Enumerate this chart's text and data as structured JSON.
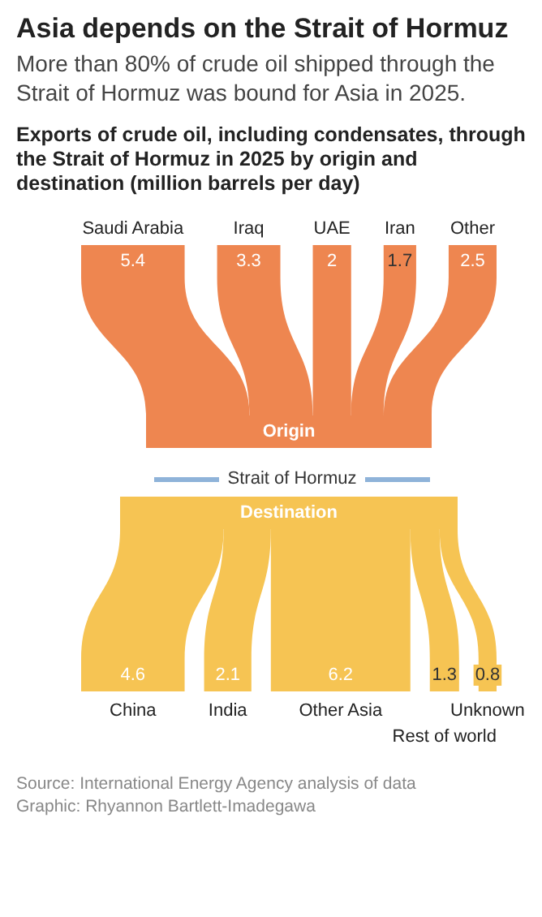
{
  "chart_data": {
    "type": "other",
    "title": "Asia depends on the Strait of Hormuz",
    "subtitle": "More than 80% of crude oil shipped through the Strait of Hormuz was bound for Asia in 2025.",
    "annotations": [
      "Exports of crude oil, including condensates, through the Strait of Hormuz in 2025 by origin and destination (million barrels per day)",
      "Origin",
      "Strait of Hormuz",
      "Destination",
      "Source: International Energy Agency analysis of data",
      "Graphic: Rhyannon Bartlett-Imadegawa"
    ],
    "data_labels": true,
    "categories": [
      "Saudi Arabia",
      "Iraq",
      "UAE",
      "Iran",
      "Other",
      "China",
      "India",
      "Other Asia",
      "Rest of world",
      "Unknown"
    ],
    "values": [
      5.4,
      3.3,
      2,
      1.7,
      2.5,
      4.6,
      2.1,
      6.2,
      1.3,
      0.8
    ],
    "colors": [
      "#ee8650",
      "#ee8650",
      "#ee8650",
      "#ee8650",
      "#ee8650",
      "#f6c453",
      "#f6c453",
      "#f6c453",
      "#f6c453",
      "#f6c453"
    ]
  }
}
